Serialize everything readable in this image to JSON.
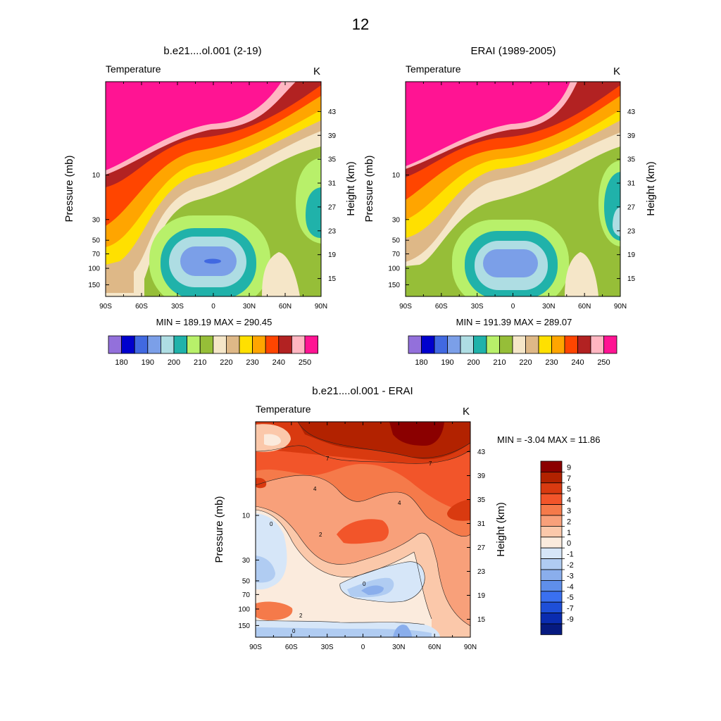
{
  "figure": {
    "title": "12"
  },
  "chart_data": [
    {
      "type": "heatmap",
      "title": "b.e21....ol.001 (2-19)",
      "left_label": "Temperature",
      "right_label": "K",
      "ylabel": "Pressure (mb)",
      "ylabel_right": "Height (km)",
      "x_ticks": [
        "90S",
        "60S",
        "30S",
        "0",
        "30N",
        "60N",
        "90N"
      ],
      "x_values": [
        -90,
        -60,
        -30,
        0,
        30,
        60,
        90
      ],
      "y_ticks": [
        "10",
        "30",
        "50",
        "70",
        "100",
        "150"
      ],
      "y_values": [
        10,
        30,
        50,
        70,
        100,
        150
      ],
      "ylim": [
        1,
        200
      ],
      "height_ticks": [
        "43",
        "39",
        "35",
        "31",
        "27",
        "23",
        "19",
        "15"
      ],
      "height_values": [
        43,
        39,
        35,
        31,
        27,
        23,
        19,
        15
      ],
      "stats": "MIN = 189.19  MAX = 290.45",
      "colorbar": {
        "levels": [
          180,
          190,
          200,
          210,
          220,
          230,
          240,
          250
        ],
        "labels": [
          "180",
          "190",
          "200",
          "210",
          "220",
          "230",
          "240",
          "250"
        ],
        "colors": [
          "#9370DB",
          "#0000CD",
          "#4169E1",
          "#7B9FE8",
          "#AEDDE3",
          "#20B2AA",
          "#B8F06A",
          "#96BE38",
          "#F5E6C8",
          "#DEB887",
          "#FFE000",
          "#FFA500",
          "#FF4500",
          "#B22222",
          "#FFB6C1",
          "#FF1493"
        ]
      }
    },
    {
      "type": "heatmap",
      "title": "ERAI (1989-2005)",
      "left_label": "Temperature",
      "right_label": "K",
      "ylabel": "Pressure (mb)",
      "ylabel_right": "Height (km)",
      "x_ticks": [
        "90S",
        "60S",
        "30S",
        "0",
        "30N",
        "60N",
        "90N"
      ],
      "x_values": [
        -90,
        -60,
        -30,
        0,
        30,
        60,
        90
      ],
      "y_ticks": [
        "10",
        "30",
        "50",
        "70",
        "100",
        "150"
      ],
      "y_values": [
        10,
        30,
        50,
        70,
        100,
        150
      ],
      "ylim": [
        1,
        200
      ],
      "height_ticks": [
        "43",
        "39",
        "35",
        "31",
        "27",
        "23",
        "19",
        "15"
      ],
      "height_values": [
        43,
        39,
        35,
        31,
        27,
        23,
        19,
        15
      ],
      "stats": "MIN = 191.39  MAX = 289.07",
      "colorbar": {
        "levels": [
          180,
          190,
          200,
          210,
          220,
          230,
          240,
          250
        ],
        "labels": [
          "180",
          "190",
          "200",
          "210",
          "220",
          "230",
          "240",
          "250"
        ],
        "colors": [
          "#9370DB",
          "#0000CD",
          "#4169E1",
          "#7B9FE8",
          "#AEDDE3",
          "#20B2AA",
          "#B8F06A",
          "#96BE38",
          "#F5E6C8",
          "#DEB887",
          "#FFE000",
          "#FFA500",
          "#FF4500",
          "#B22222",
          "#FFB6C1",
          "#FF1493"
        ]
      }
    },
    {
      "type": "heatmap",
      "title": "b.e21....ol.001 - ERAI",
      "left_label": "Temperature",
      "right_label": "K",
      "ylabel": "Pressure (mb)",
      "ylabel_right": "Height (km)",
      "x_ticks": [
        "90S",
        "60S",
        "30S",
        "0",
        "30N",
        "60N",
        "90N"
      ],
      "x_values": [
        -90,
        -60,
        -30,
        0,
        30,
        60,
        90
      ],
      "y_ticks": [
        "10",
        "30",
        "50",
        "70",
        "100",
        "150"
      ],
      "y_values": [
        10,
        30,
        50,
        70,
        100,
        150
      ],
      "ylim": [
        1,
        200
      ],
      "height_ticks": [
        "43",
        "39",
        "35",
        "31",
        "27",
        "23",
        "19",
        "15"
      ],
      "height_values": [
        43,
        39,
        35,
        31,
        27,
        23,
        19,
        15
      ],
      "stats": "MIN =  -3.04  MAX =  11.86",
      "contour_labels": [
        "7",
        "4",
        "2",
        "0"
      ],
      "colorbar": {
        "levels": [
          9,
          7,
          5,
          4,
          3,
          2,
          1,
          0,
          -1,
          -2,
          -3,
          -4,
          -5,
          -7,
          -9
        ],
        "labels": [
          "9",
          "7",
          "5",
          "4",
          "3",
          "2",
          "1",
          "0",
          "-1",
          "-2",
          "-3",
          "-4",
          "-5",
          "-7",
          "-9"
        ],
        "colors": [
          "#8B0000",
          "#B22200",
          "#D93A10",
          "#F2552A",
          "#F57A4A",
          "#F8A07A",
          "#FBC8AA",
          "#FBEBDD",
          "#D6E6F8",
          "#B0CCF2",
          "#8AAEEC",
          "#5F8FEA",
          "#3A70F0",
          "#1E4FD8",
          "#0A2CB0",
          "#061A80"
        ]
      }
    }
  ]
}
